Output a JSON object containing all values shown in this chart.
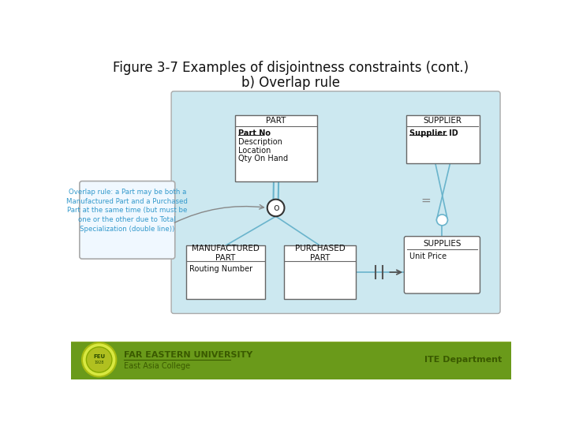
{
  "title_line1": "Figure 3-7 Examples of disjointness constraints (cont.)",
  "title_line2": "b) Overlap rule",
  "title_fontsize": 12,
  "bg_color": "#ffffff",
  "diagram_bg": "#cce8f0",
  "light_blue_line": "#6ab4cc",
  "connector_color": "#6ab4cc",
  "box_edge_color": "#666666",
  "note_text_color": "#3399cc",
  "footer_green": "#6a9a1a",
  "footer_dark_green": "#3a5a00",
  "overlap_note": "Overlap rule: a Part may be both a\nManufactured Part and a Purchased\nPart at the same time (but must be\none or the other due to Total\nSpecialization (double line))",
  "feu_text": "FAR EASTERN UNIVERSITY",
  "college_text": "East Asia College",
  "dept_text": "ITE Department"
}
